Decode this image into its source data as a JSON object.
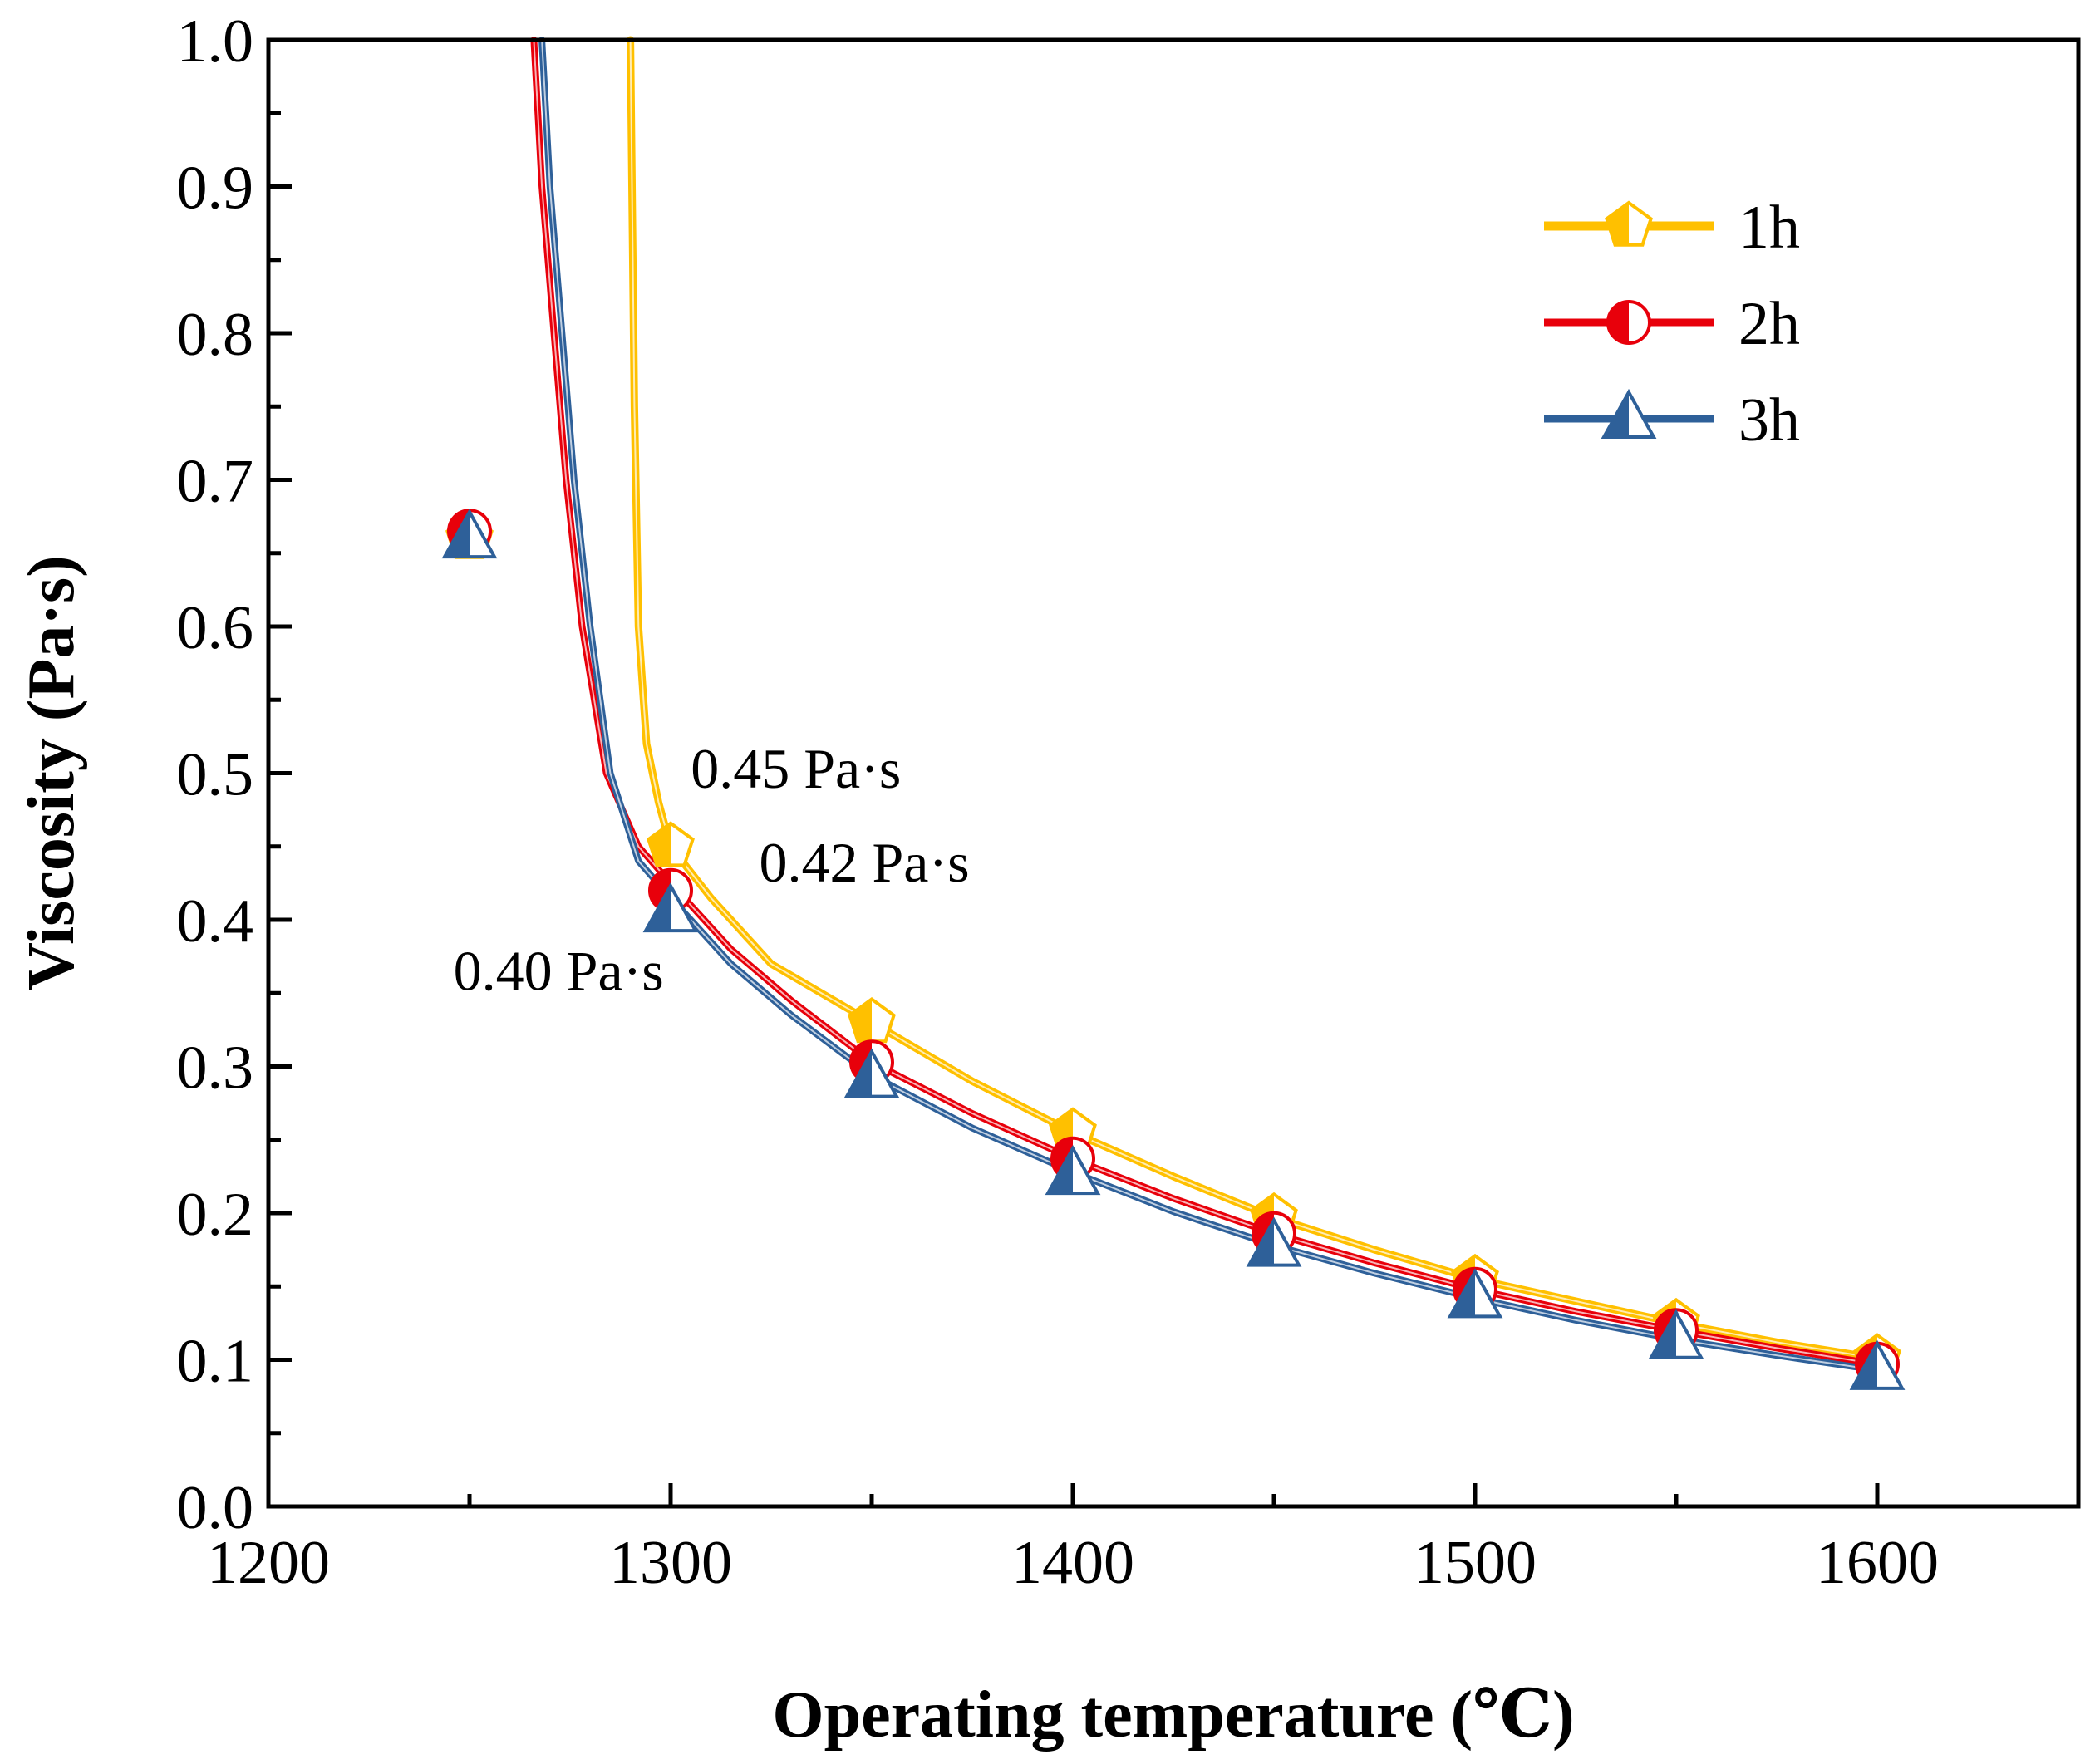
{
  "chart_data": {
    "type": "line",
    "title": "",
    "xlabel": "Operating temperature (℃)",
    "ylabel": "Viscosity (Pa·s)",
    "xlim": [
      1200,
      1650
    ],
    "ylim": [
      0.0,
      1.0
    ],
    "xticks": [
      1200,
      1300,
      1400,
      1500,
      1600
    ],
    "xtick_labels": [
      "1200",
      "1300",
      "1400",
      "1500",
      "1600"
    ],
    "yticks": [
      0.0,
      0.1,
      0.2,
      0.3,
      0.4,
      0.5,
      0.6,
      0.7,
      0.8,
      0.9,
      1.0
    ],
    "ytick_labels": [
      "0.0",
      "0.1",
      "0.2",
      "0.3",
      "0.4",
      "0.5",
      "0.6",
      "0.7",
      "0.8",
      "0.9",
      "1.0"
    ],
    "legend_position": "top-right",
    "series": [
      {
        "name": "1h",
        "color": "#FFC000",
        "marker": "pentagon",
        "points": [
          [
            1250,
            0.66
          ],
          [
            1300,
            0.45
          ],
          [
            1350,
            0.33
          ],
          [
            1400,
            0.255
          ],
          [
            1450,
            0.197
          ],
          [
            1500,
            0.155
          ],
          [
            1550,
            0.125
          ],
          [
            1600,
            0.101
          ]
        ],
        "curve": [
          [
            1290,
            1.0
          ],
          [
            1291,
            0.75
          ],
          [
            1292,
            0.6
          ],
          [
            1294,
            0.52
          ],
          [
            1297,
            0.48
          ],
          [
            1300,
            0.45
          ],
          [
            1310,
            0.415
          ],
          [
            1325,
            0.37
          ],
          [
            1350,
            0.33
          ],
          [
            1375,
            0.29
          ],
          [
            1400,
            0.255
          ],
          [
            1425,
            0.225
          ],
          [
            1450,
            0.197
          ],
          [
            1475,
            0.175
          ],
          [
            1500,
            0.155
          ],
          [
            1525,
            0.14
          ],
          [
            1550,
            0.125
          ],
          [
            1575,
            0.112
          ],
          [
            1600,
            0.101
          ]
        ]
      },
      {
        "name": "2h",
        "color": "#E8000B",
        "marker": "circle",
        "points": [
          [
            1250,
            0.665
          ],
          [
            1300,
            0.42
          ],
          [
            1350,
            0.303
          ],
          [
            1400,
            0.237
          ],
          [
            1450,
            0.186
          ],
          [
            1500,
            0.148
          ],
          [
            1550,
            0.12
          ],
          [
            1600,
            0.097
          ]
        ],
        "curve": [
          [
            1266,
            1.0
          ],
          [
            1268,
            0.9
          ],
          [
            1271,
            0.8
          ],
          [
            1274,
            0.7
          ],
          [
            1278,
            0.6
          ],
          [
            1284,
            0.5
          ],
          [
            1292,
            0.45
          ],
          [
            1300,
            0.425
          ],
          [
            1315,
            0.38
          ],
          [
            1330,
            0.345
          ],
          [
            1350,
            0.303
          ],
          [
            1375,
            0.268
          ],
          [
            1400,
            0.237
          ],
          [
            1425,
            0.21
          ],
          [
            1450,
            0.186
          ],
          [
            1475,
            0.166
          ],
          [
            1500,
            0.148
          ],
          [
            1525,
            0.133
          ],
          [
            1550,
            0.12
          ],
          [
            1575,
            0.108
          ],
          [
            1600,
            0.097
          ]
        ]
      },
      {
        "name": "3h",
        "color": "#2E6099",
        "marker": "triangle",
        "points": [
          [
            1250,
            0.66
          ],
          [
            1300,
            0.405
          ],
          [
            1350,
            0.292
          ],
          [
            1400,
            0.226
          ],
          [
            1450,
            0.177
          ],
          [
            1500,
            0.142
          ],
          [
            1550,
            0.114
          ],
          [
            1600,
            0.093
          ]
        ],
        "curve": [
          [
            1268,
            1.0
          ],
          [
            1270,
            0.9
          ],
          [
            1273,
            0.8
          ],
          [
            1276,
            0.7
          ],
          [
            1280,
            0.6
          ],
          [
            1285,
            0.5
          ],
          [
            1292,
            0.44
          ],
          [
            1300,
            0.415
          ],
          [
            1315,
            0.37
          ],
          [
            1330,
            0.335
          ],
          [
            1350,
            0.294
          ],
          [
            1375,
            0.258
          ],
          [
            1400,
            0.228
          ],
          [
            1425,
            0.201
          ],
          [
            1450,
            0.178
          ],
          [
            1475,
            0.159
          ],
          [
            1500,
            0.142
          ],
          [
            1525,
            0.127
          ],
          [
            1550,
            0.114
          ],
          [
            1575,
            0.103
          ],
          [
            1600,
            0.093
          ]
        ]
      }
    ],
    "annotations": [
      {
        "text": "0.45 Pa·s",
        "x": 1305,
        "y": 0.49
      },
      {
        "text": "0.42 Pa·s",
        "x": 1322,
        "y": 0.426
      },
      {
        "text": "0.40 Pa·s",
        "x": 1246,
        "y": 0.352
      }
    ]
  }
}
